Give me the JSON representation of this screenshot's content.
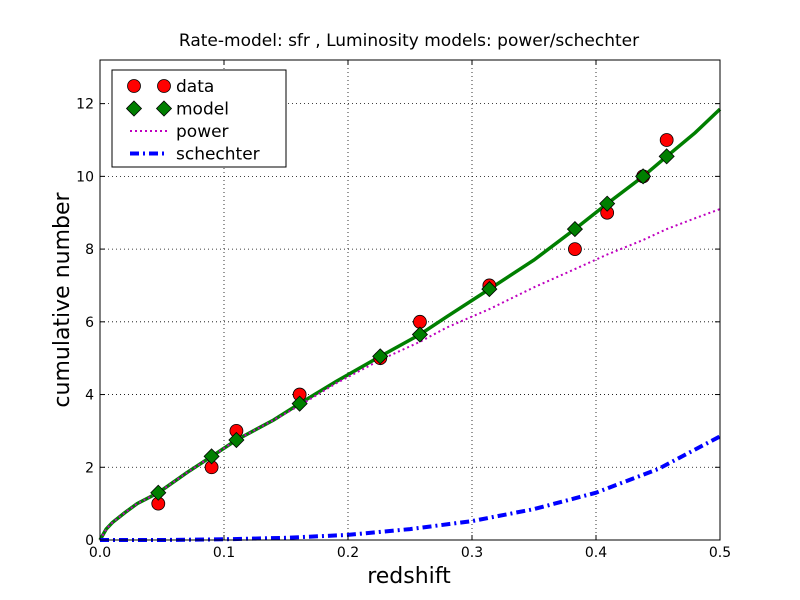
{
  "chart_data": {
    "type": "scatter",
    "title": "Rate-model: sfr , Luminosity models: power/schechter",
    "xlabel": "redshift",
    "ylabel": "cumulative number",
    "xlim": [
      0.0,
      0.5
    ],
    "ylim": [
      0,
      13.2
    ],
    "xticks": [
      0.0,
      0.1,
      0.2,
      0.3,
      0.4,
      0.5
    ],
    "xtick_labels": [
      "0.0",
      "0.1",
      "0.2",
      "0.3",
      "0.4",
      "0.5"
    ],
    "yticks": [
      0,
      2,
      4,
      6,
      8,
      10,
      12
    ],
    "ytick_labels": [
      "0",
      "2",
      "4",
      "6",
      "8",
      "10",
      "12"
    ],
    "grid": true,
    "legend_position": "top-left",
    "series": [
      {
        "name": "data",
        "kind": "markers",
        "marker": "circle",
        "color": "#ff0000",
        "x": [
          0.047,
          0.09,
          0.11,
          0.161,
          0.226,
          0.258,
          0.314,
          0.383,
          0.409,
          0.438,
          0.457
        ],
        "y": [
          1,
          2,
          3,
          4,
          5,
          6,
          7,
          8,
          9,
          10,
          11
        ]
      },
      {
        "name": "model",
        "kind": "line+markers",
        "marker": "diamond",
        "color": "#007f00",
        "x": [
          0.047,
          0.09,
          0.11,
          0.161,
          0.226,
          0.258,
          0.314,
          0.383,
          0.409,
          0.438,
          0.457
        ],
        "y": [
          1.3,
          2.3,
          2.75,
          3.75,
          5.05,
          5.65,
          6.9,
          8.55,
          9.25,
          10.0,
          10.55
        ],
        "curve_x": [
          0.0,
          0.005,
          0.01,
          0.02,
          0.03,
          0.047,
          0.07,
          0.09,
          0.11,
          0.14,
          0.161,
          0.19,
          0.226,
          0.258,
          0.28,
          0.314,
          0.35,
          0.383,
          0.409,
          0.438,
          0.457,
          0.48,
          0.5
        ],
        "curve_y": [
          0.0,
          0.3,
          0.48,
          0.75,
          1.0,
          1.3,
          1.85,
          2.3,
          2.75,
          3.3,
          3.75,
          4.35,
          5.05,
          5.65,
          6.15,
          6.9,
          7.7,
          8.55,
          9.25,
          10.0,
          10.55,
          11.2,
          11.85
        ]
      },
      {
        "name": "power",
        "kind": "line",
        "dash": "dotted",
        "color": "#bf00bf",
        "x": [
          0.0,
          0.005,
          0.01,
          0.02,
          0.03,
          0.047,
          0.07,
          0.09,
          0.11,
          0.14,
          0.161,
          0.19,
          0.226,
          0.258,
          0.28,
          0.314,
          0.35,
          0.383,
          0.409,
          0.438,
          0.457,
          0.48,
          0.5
        ],
        "y": [
          0.0,
          0.3,
          0.48,
          0.75,
          1.0,
          1.3,
          1.85,
          2.3,
          2.75,
          3.3,
          3.7,
          4.3,
          4.95,
          5.45,
          5.85,
          6.35,
          6.95,
          7.45,
          7.85,
          8.25,
          8.55,
          8.85,
          9.1
        ]
      },
      {
        "name": "schechter",
        "kind": "line",
        "dash": "dashdot",
        "color": "#0000ff",
        "x": [
          0.0,
          0.05,
          0.1,
          0.15,
          0.2,
          0.25,
          0.3,
          0.35,
          0.4,
          0.45,
          0.5
        ],
        "y": [
          0.0,
          0.0,
          0.02,
          0.06,
          0.14,
          0.3,
          0.52,
          0.85,
          1.3,
          1.95,
          2.85
        ]
      }
    ]
  }
}
